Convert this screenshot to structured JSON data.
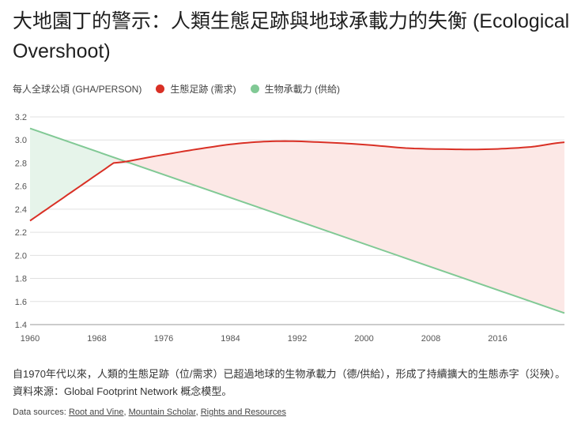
{
  "title": "大地園丁的警示：人類生態足跡與地球承載力的失衡 (Ecological Overshoot)",
  "legend": {
    "unit_label": "每人全球公頃 (GHA/PERSON)",
    "items": [
      {
        "label": "生態足跡 (需求)",
        "color": "#d93025"
      },
      {
        "label": "生物承載力 (供給)",
        "color": "#81c995"
      }
    ]
  },
  "caption": "自1970年代以來，人類的生態足跡（位/需求）已超過地球的生物承載力（德/供給），形成了持續擴大的生態赤字（災殃）。資料來源：Global Footprint Network 概念模型。",
  "sources": {
    "prefix": "Data sources:",
    "links": [
      "Root and Vine",
      "Mountain Scholar",
      "Rights and Resources"
    ]
  },
  "chart_data": {
    "type": "area",
    "title": "大地園丁的警示：人類生態足跡與地球承載力的失衡 (Ecological Overshoot)",
    "ylabel": "每人全球公頃 (GHA/PERSON)",
    "xlabel": "",
    "xlim": [
      1960,
      2024
    ],
    "ylim": [
      1.4,
      3.2
    ],
    "x_ticks": [
      1960,
      1968,
      1976,
      1984,
      1992,
      2000,
      2008,
      2016
    ],
    "y_ticks": [
      1.4,
      1.6,
      1.8,
      2.0,
      2.2,
      2.4,
      2.6,
      2.8,
      3.0,
      3.2
    ],
    "grid": true,
    "series": [
      {
        "name": "生態足跡 (需求)",
        "color": "#d93025",
        "x": [
          1960,
          1970,
          1975,
          1980,
          1985,
          1990,
          1995,
          2000,
          2005,
          2010,
          2015,
          2020,
          2024
        ],
        "y": [
          2.3,
          2.8,
          2.86,
          2.92,
          2.97,
          2.99,
          2.98,
          2.96,
          2.93,
          2.92,
          2.92,
          2.94,
          2.98
        ]
      },
      {
        "name": "生物承載力 (供給)",
        "color": "#81c995",
        "x": [
          1960,
          2024
        ],
        "y": [
          3.1,
          1.5
        ]
      }
    ],
    "shading": [
      {
        "label": "biocapacity reserve",
        "from": 1960,
        "to": 1970,
        "color": "#e6f4ea"
      },
      {
        "label": "ecological deficit",
        "from": 1970,
        "to": 2024,
        "color": "#fce8e6"
      }
    ]
  }
}
